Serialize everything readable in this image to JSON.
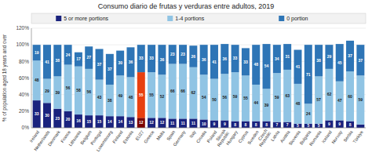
{
  "chart_data": {
    "type": "bar",
    "stacked": true,
    "data_labels": true,
    "grid": true,
    "legend": "top",
    "title": "Consumo diario de frutas y verduras entre adultos, 2019",
    "y_label": "% of population aged 18 years and over",
    "categories": [
      "Ireland",
      "Netherlands",
      "Denmark",
      "France",
      "Lithuania",
      "Belgium",
      "Portugal",
      "Luxembourg",
      "Finland",
      "Estonia",
      "EU27",
      "Greece",
      "Malta",
      "Spain",
      "Germany",
      "Italy",
      "Croatia",
      "Poland",
      "Slovak\nRepublic",
      "Hungary",
      "Cyprus",
      "Sweden",
      "Czech\nRepublic",
      "Latvia",
      "Austria",
      "Slovenia",
      "Bulgaria",
      "Romania",
      "Iceland",
      "Norway",
      "Serbia",
      "Türkiye"
    ],
    "series": [
      {
        "name": "5 or more portions",
        "color": "#1a237e",
        "colors": [
          "#1a237e",
          "#1a237e",
          "#1a237e",
          "#1a237e",
          "#1a237e",
          "#1a237e",
          "#1a237e",
          "#1a237e",
          "#1a237e",
          "#1a237e",
          "#7b0000",
          "#1a237e",
          "#1a237e",
          "#1a237e",
          "#1a237e",
          "#1a237e",
          "#1a237e",
          "#1a237e",
          "#1a237e",
          "#1a237e",
          "#1a237e",
          "#1a237e",
          "#1a237e",
          "#1a237e",
          "#1a237e",
          "#1a237e",
          "#1a237e",
          "#1a237e",
          "#1a237e",
          "#1a237e",
          "#1a237e",
          "#1a237e"
        ],
        "values": [
          33,
          30,
          23,
          20,
          16,
          15,
          15,
          14,
          14,
          13,
          12,
          12,
          12,
          11,
          11,
          11,
          10,
          9,
          9,
          8,
          8,
          8,
          8,
          7,
          7,
          5,
          5,
          5,
          9,
          9,
          8,
          4
        ],
        "value_labels": [
          "33",
          "30",
          "23",
          "20",
          "16",
          "15",
          "15",
          "14",
          "14",
          "13",
          "12",
          "12",
          "12",
          "11",
          "11",
          "11",
          "10",
          "9",
          "9",
          "8",
          "8",
          "8",
          "8",
          "7",
          "7",
          "5",
          "5",
          "5",
          "9",
          "9",
          "8",
          null
        ]
      },
      {
        "name": "1-4 portions",
        "color": "#90c4e4",
        "colors": [
          "#90c4e4",
          "#90c4e4",
          "#90c4e4",
          "#90c4e4",
          "#90c4e4",
          "#90c4e4",
          "#90c4e4",
          "#90c4e4",
          "#90c4e4",
          "#90c4e4",
          "#e84010",
          "#90c4e4",
          "#90c4e4",
          "#90c4e4",
          "#90c4e4",
          "#90c4e4",
          "#90c4e4",
          "#90c4e4",
          "#90c4e4",
          "#90c4e4",
          "#90c4e4",
          "#90c4e4",
          "#90c4e4",
          "#90c4e4",
          "#90c4e4",
          "#90c4e4",
          "#90c4e4",
          "#90c4e4",
          "#90c4e4",
          "#90c4e4",
          "#90c4e4",
          "#90c4e4"
        ],
        "values": [
          48,
          29,
          39,
          56,
          58,
          56,
          43,
          38,
          49,
          48,
          55,
          55,
          52,
          66,
          66,
          62,
          54,
          50,
          56,
          59,
          55,
          44,
          39,
          59,
          63,
          48,
          24,
          57,
          62,
          47,
          60,
          59
        ]
      },
      {
        "name": "0 portion",
        "color": "#2e75b6",
        "values": [
          19,
          41,
          38,
          24,
          17,
          27,
          37,
          37,
          30,
          36,
          33,
          33,
          36,
          23,
          23,
          26,
          36,
          41,
          36,
          33,
          33,
          48,
          54,
          34,
          31,
          41,
          71,
          38,
          29,
          45,
          37,
          37
        ]
      }
    ],
    "ylim": [
      0,
      120
    ],
    "yticks": [
      {
        "value": 0,
        "label": "0%"
      },
      {
        "value": 20,
        "label": "20%"
      },
      {
        "value": 40,
        "label": "40%"
      },
      {
        "value": 60,
        "label": "60%"
      },
      {
        "value": 80,
        "label": "80%"
      },
      {
        "value": 100,
        "label": "100%"
      },
      {
        "value": 120,
        "label": "120%"
      }
    ]
  }
}
